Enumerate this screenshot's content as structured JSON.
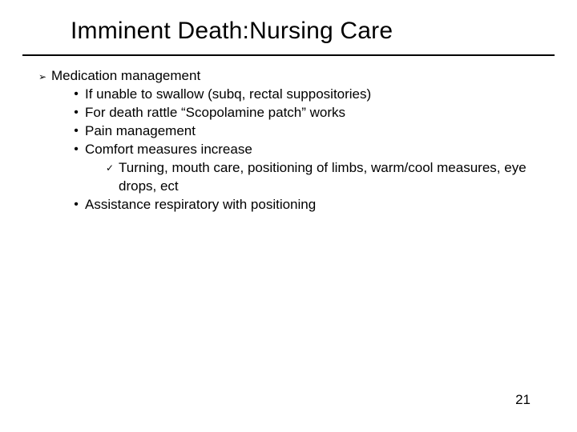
{
  "title": "Imminent Death:Nursing Care",
  "glyphs": {
    "arrow": "➢",
    "dot": "•",
    "check": "✓"
  },
  "body": {
    "main": "Medication management",
    "subs": [
      "If unable to swallow (subq, rectal suppositories)",
      "For death rattle “Scopolamine patch” works",
      "Pain management",
      "Comfort measures increase"
    ],
    "detail": "Turning, mouth care, positioning of limbs, warm/cool measures, eye drops, ect",
    "subs_after": [
      "Assistance respiratory with positioning"
    ]
  },
  "page_number": "21",
  "colors": {
    "text": "#000000",
    "background": "#ffffff",
    "rule": "#000000"
  },
  "typography": {
    "title_fontsize": 30,
    "body_fontsize": 17,
    "font_family": "Arial"
  }
}
